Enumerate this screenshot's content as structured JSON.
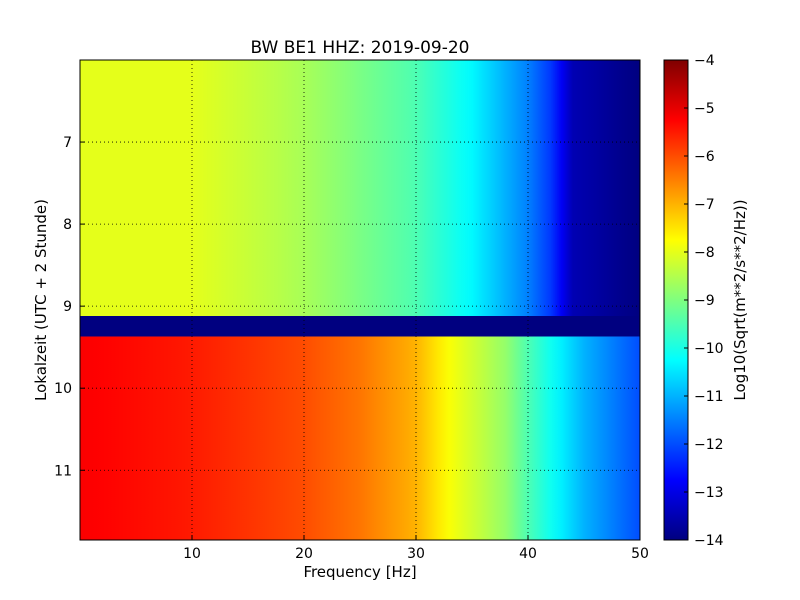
{
  "chart_data": {
    "type": "heatmap",
    "title": "BW BE1 HHZ: 2019-09-20",
    "xlabel": "Frequency [Hz]",
    "ylabel": "Lokalzeit (UTC + 2 Stunde)",
    "xlim": [
      0,
      50
    ],
    "ylim": [
      6.0,
      11.85
    ],
    "y_inverted": true,
    "x_ticks": [
      "10",
      "20",
      "30",
      "40",
      "50"
    ],
    "y_ticks": [
      "7",
      "8",
      "9",
      "10",
      "11"
    ],
    "grid": true,
    "colormap": "jet",
    "colorbar": {
      "label": "Log10(Sqrt(m**2/s**2/Hz))",
      "range": [
        -14,
        -4
      ],
      "ticks": [
        "-4",
        "-5",
        "-6",
        "-7",
        "-8",
        "-9",
        "-10",
        "-11",
        "-12",
        "-13",
        "-14"
      ]
    },
    "segments": [
      {
        "time_start": 6.0,
        "time_end": 9.12,
        "state": "quiet",
        "profile": [
          {
            "f": 0,
            "v": -8.0
          },
          {
            "f": 10,
            "v": -8.0
          },
          {
            "f": 20,
            "v": -8.6
          },
          {
            "f": 30,
            "v": -9.5
          },
          {
            "f": 35,
            "v": -10.3
          },
          {
            "f": 40,
            "v": -11.5
          },
          {
            "f": 42,
            "v": -12.2
          },
          {
            "f": 44,
            "v": -13.5
          },
          {
            "f": 50,
            "v": -14.0
          }
        ]
      },
      {
        "time_start": 9.12,
        "time_end": 9.37,
        "state": "gap",
        "value": -14.0
      },
      {
        "time_start": 9.37,
        "time_end": 11.85,
        "state": "active",
        "profile": [
          {
            "f": 0,
            "v": -5.2
          },
          {
            "f": 10,
            "v": -5.5
          },
          {
            "f": 20,
            "v": -6.0
          },
          {
            "f": 25,
            "v": -6.4
          },
          {
            "f": 30,
            "v": -7.0
          },
          {
            "f": 33,
            "v": -7.8
          },
          {
            "f": 38,
            "v": -8.8
          },
          {
            "f": 40,
            "v": -9.5
          },
          {
            "f": 45,
            "v": -11.0
          },
          {
            "f": 50,
            "v": -12.0
          }
        ]
      }
    ]
  }
}
